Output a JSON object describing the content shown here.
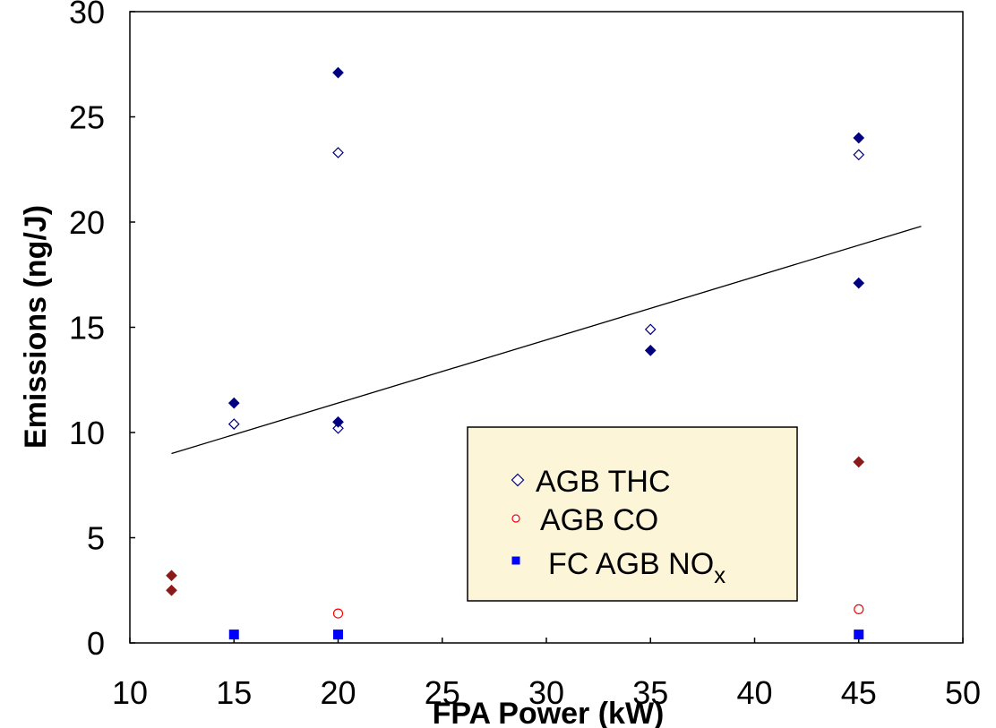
{
  "chart_data": {
    "type": "scatter",
    "xlabel": "FPA Power (kW)",
    "ylabel": "Emissions (ng/J)",
    "xlim": [
      10,
      50
    ],
    "ylim": [
      0,
      30
    ],
    "x_ticks": [
      "10",
      "15",
      "20",
      "25",
      "30",
      "35",
      "40",
      "45",
      "50"
    ],
    "y_ticks": [
      "0",
      "5",
      "10",
      "15",
      "20",
      "25",
      "30"
    ],
    "grid": false,
    "legend_position": "bottom-right",
    "legend": {
      "bg_color": "#fdf5d8",
      "items": [
        {
          "label": "AGB THC",
          "sub": "",
          "marker": "diamond-open",
          "color": "#000080"
        },
        {
          "label": "AGB CO",
          "sub": "",
          "marker": "circle-open",
          "color": "#ff0000"
        },
        {
          "label": "FC AGB NO",
          "sub": "x",
          "marker": "square",
          "color": "#0000ff"
        }
      ]
    },
    "series": [
      {
        "marker": "diamond-open",
        "color": "#000080",
        "points": [
          [
            15,
            10.4
          ],
          [
            20,
            23.3
          ],
          [
            20,
            10.2
          ],
          [
            35,
            14.9
          ],
          [
            45,
            23.2
          ]
        ]
      },
      {
        "marker": "diamond-filled",
        "color": "#000080",
        "points": [
          [
            15,
            11.4
          ],
          [
            20,
            27.1
          ],
          [
            20,
            10.5
          ],
          [
            35,
            13.9
          ],
          [
            45,
            24.0
          ],
          [
            45,
            17.1
          ]
        ]
      },
      {
        "marker": "diamond-filled",
        "color": "#8b1a1a",
        "points": [
          [
            12,
            3.2
          ],
          [
            12,
            2.5
          ],
          [
            45,
            8.6
          ]
        ]
      },
      {
        "marker": "circle-open",
        "color": "#ff0000",
        "points": [
          [
            20,
            1.4
          ],
          [
            45,
            1.6
          ]
        ]
      },
      {
        "marker": "square",
        "color": "#0000ff",
        "points": [
          [
            15,
            0.4
          ],
          [
            20,
            0.4
          ],
          [
            45,
            0.4
          ]
        ]
      }
    ],
    "trendline": {
      "color": "#000000",
      "points": [
        [
          12,
          9.0
        ],
        [
          48,
          19.8
        ]
      ]
    }
  }
}
